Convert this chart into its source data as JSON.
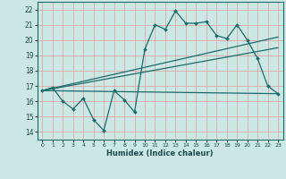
{
  "title": "",
  "xlabel": "Humidex (Indice chaleur)",
  "background_color": "#cce8e4",
  "grid_color": "#e0a8a8",
  "line_color": "#1a6b6b",
  "xlim": [
    -0.5,
    23.5
  ],
  "ylim": [
    13.5,
    22.5
  ],
  "xticks": [
    0,
    1,
    2,
    3,
    4,
    5,
    6,
    7,
    8,
    9,
    10,
    11,
    12,
    13,
    14,
    15,
    16,
    17,
    18,
    19,
    20,
    21,
    22,
    23
  ],
  "yticks": [
    14,
    15,
    16,
    17,
    18,
    19,
    20,
    21,
    22
  ],
  "line1_x": [
    0,
    1,
    2,
    3,
    4,
    5,
    6,
    7,
    8,
    9,
    10,
    11,
    12,
    13,
    14,
    15,
    16,
    17,
    18,
    19,
    20,
    21,
    22,
    23
  ],
  "line1_y": [
    16.7,
    16.9,
    16.0,
    15.5,
    16.2,
    14.8,
    14.1,
    16.7,
    16.1,
    15.3,
    19.4,
    21.0,
    20.7,
    21.9,
    21.1,
    21.1,
    21.2,
    20.3,
    20.1,
    21.0,
    20.0,
    18.8,
    17.0,
    16.5
  ],
  "line2_x": [
    0,
    23
  ],
  "line2_y": [
    16.7,
    16.5
  ],
  "line3_x": [
    0,
    23
  ],
  "line3_y": [
    16.7,
    19.5
  ],
  "line4_x": [
    0,
    23
  ],
  "line4_y": [
    16.7,
    20.2
  ]
}
